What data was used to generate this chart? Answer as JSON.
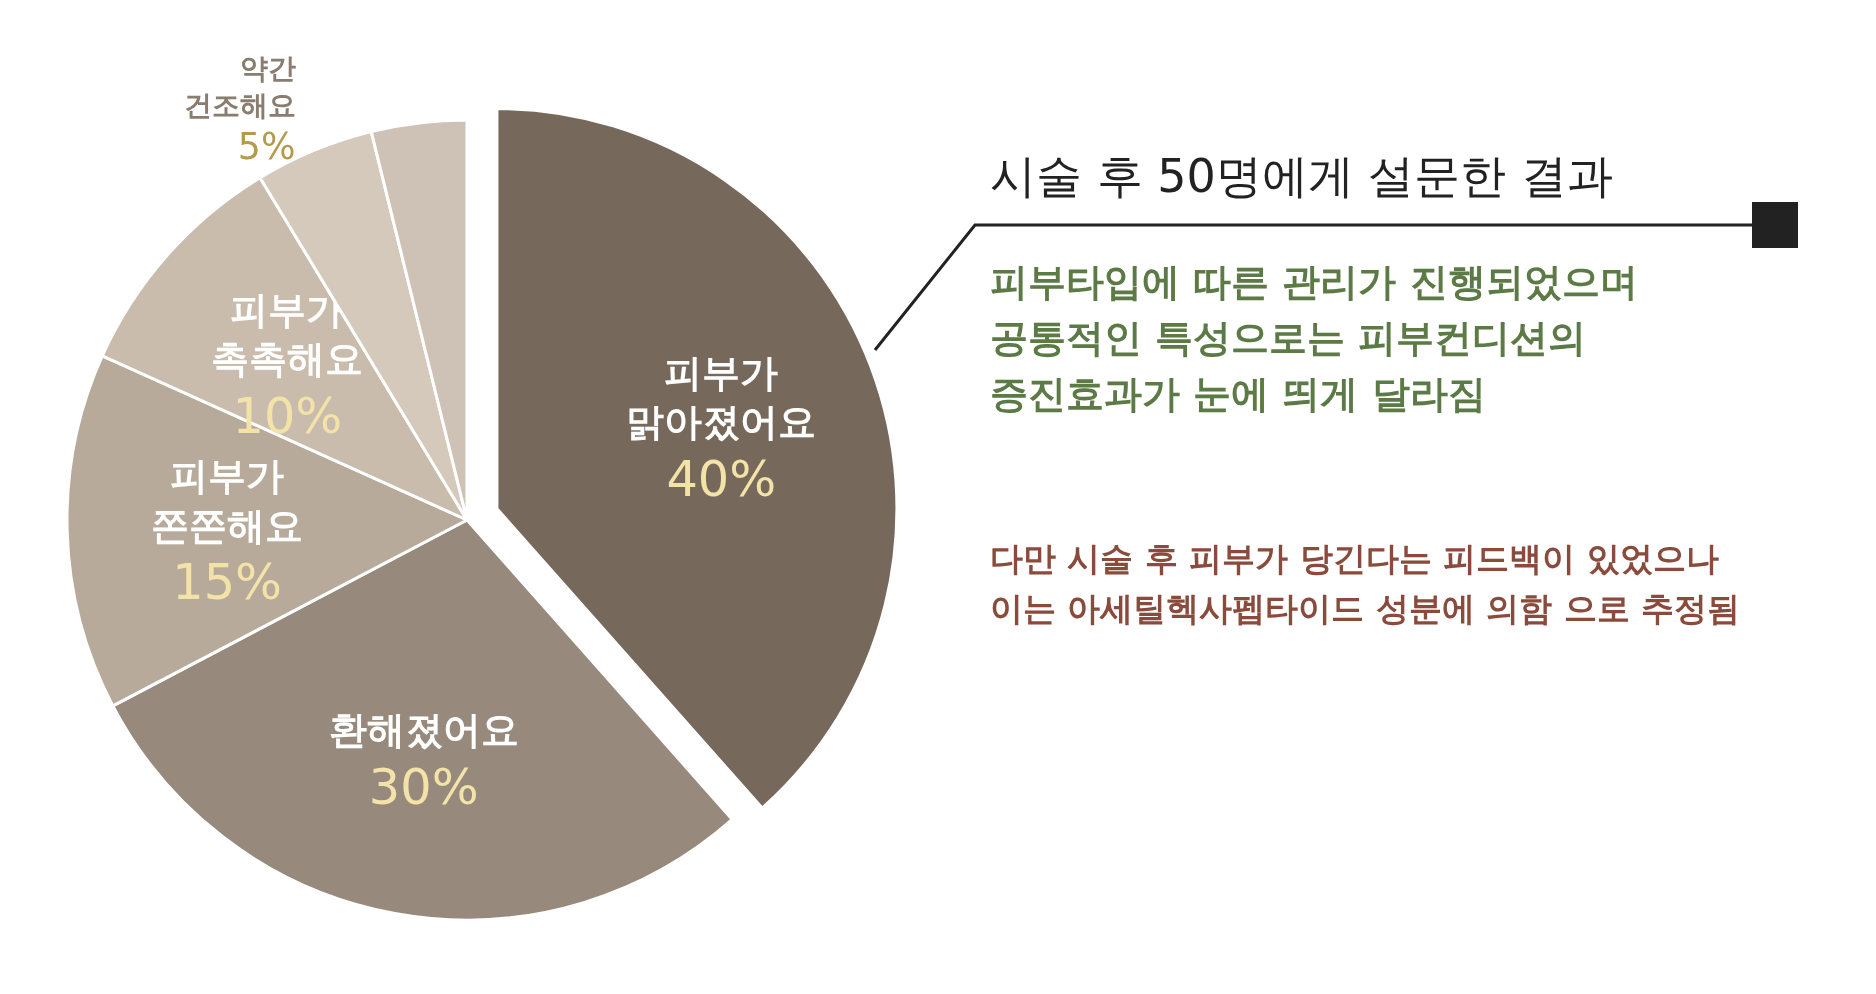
{
  "chart_data": {
    "type": "pie",
    "title": "시술 후 50명에게 설문한 결과",
    "categories": [
      "피부가\n맑아졌어요",
      "환해졌어요",
      "피부가\n쫀쫀해요",
      "피부가\n촉촉해요",
      "약간\n건조해요",
      null
    ],
    "values": [
      40,
      30,
      15,
      10,
      5,
      4
    ],
    "value_labels": [
      "40%",
      "30%",
      "15%",
      "10%",
      "5%",
      null
    ],
    "colors": [
      "#76695c",
      "#978a7d",
      "#b7aa9b",
      "#c9bcad",
      "#d4c9bb",
      "#cdc2b5"
    ],
    "annotations": [
      "피부타입에 따른 관리가 진행되었으며\n공통적인 특성으로는 피부컨디션의\n증진효과가 눈에 띄게 달라짐",
      "다만 시술 후 피부가 당긴다는 피드백이 있었으나\n이는 아세틸헥사펩타이드 성분에 의함 으로 추정됨"
    ]
  }
}
